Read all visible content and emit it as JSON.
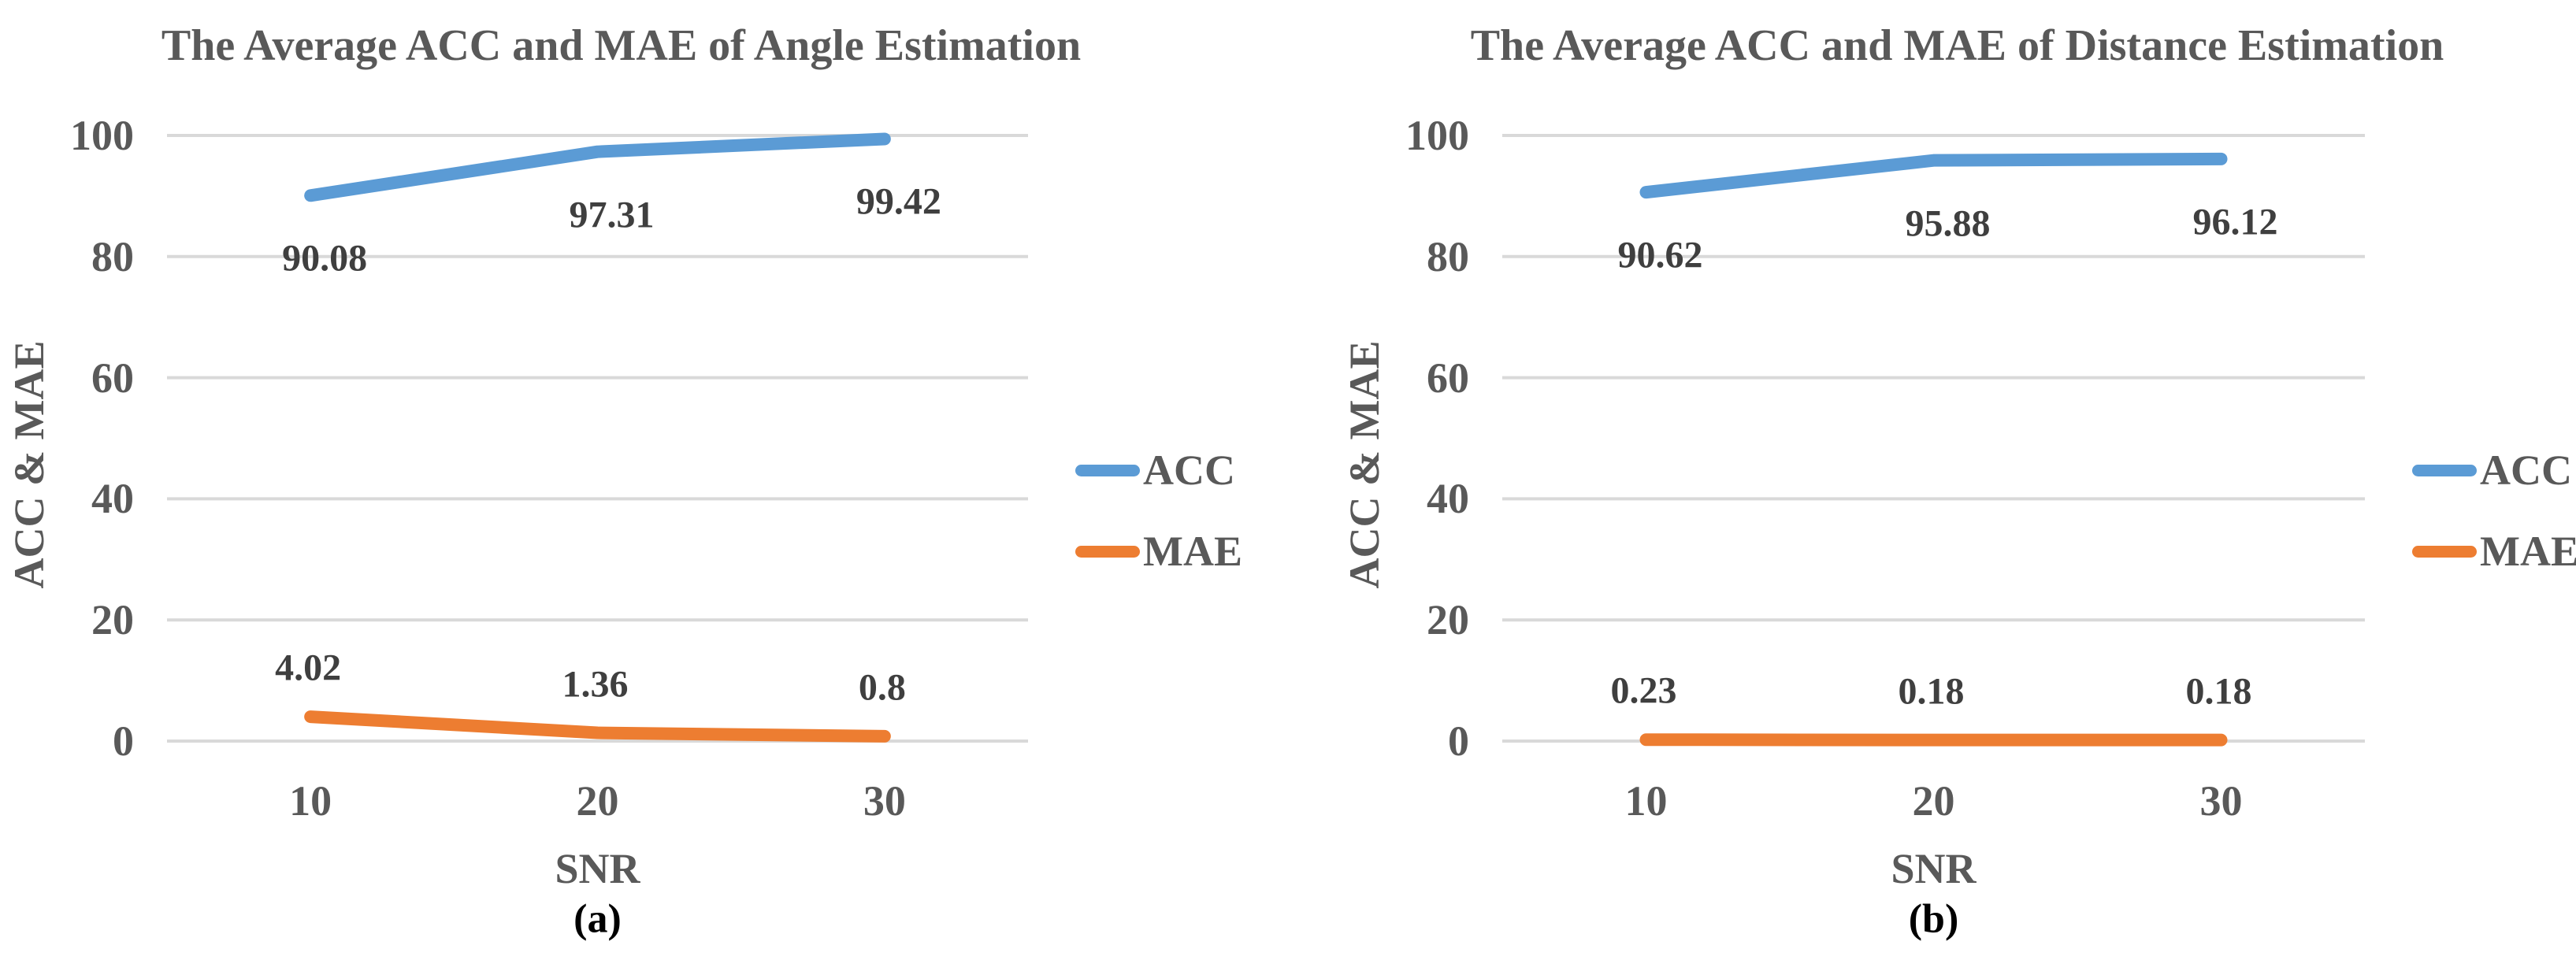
{
  "figure": {
    "background": "#FFFFFF"
  },
  "colors": {
    "acc": "#5B9BD5",
    "mae": "#ED7D31",
    "grid": "#D9D9D9",
    "axis_text": "#595959",
    "title_text": "#595959",
    "data_label": "#3F3F3F",
    "caption": "#000000"
  },
  "chart_data": [
    {
      "type": "line",
      "title": "The Average ACC and MAE of Angle Estimation",
      "caption": "(a)",
      "xlabel": "SNR",
      "ylabel": "ACC & MAE",
      "categories": [
        "10",
        "20",
        "30"
      ],
      "yticks": [
        0,
        20,
        40,
        60,
        80,
        100
      ],
      "ylim": [
        0,
        100
      ],
      "grid": true,
      "legend_position": "right",
      "series": [
        {
          "name": "ACC",
          "color_key": "acc",
          "values": [
            90.08,
            97.31,
            99.42
          ],
          "labels": [
            "90.08",
            "97.31",
            "99.42"
          ],
          "label_side": "below"
        },
        {
          "name": "MAE",
          "color_key": "mae",
          "values": [
            4.02,
            1.36,
            0.8
          ],
          "labels": [
            "4.02",
            "1.36",
            "0.8"
          ],
          "label_side": "above"
        }
      ]
    },
    {
      "type": "line",
      "title": "The Average ACC and MAE of Distance Estimation",
      "caption": "(b)",
      "xlabel": "SNR",
      "ylabel": "ACC & MAE",
      "categories": [
        "10",
        "20",
        "30"
      ],
      "yticks": [
        0,
        20,
        40,
        60,
        80,
        100
      ],
      "ylim": [
        0,
        100
      ],
      "grid": true,
      "legend_position": "right",
      "series": [
        {
          "name": "ACC",
          "color_key": "acc",
          "values": [
            90.62,
            95.88,
            96.12
          ],
          "labels": [
            "90.62",
            "95.88",
            "96.12"
          ],
          "label_side": "below"
        },
        {
          "name": "MAE",
          "color_key": "mae",
          "values": [
            0.23,
            0.18,
            0.18
          ],
          "labels": [
            "0.23",
            "0.18",
            "0.18"
          ],
          "label_side": "above"
        }
      ]
    }
  ]
}
